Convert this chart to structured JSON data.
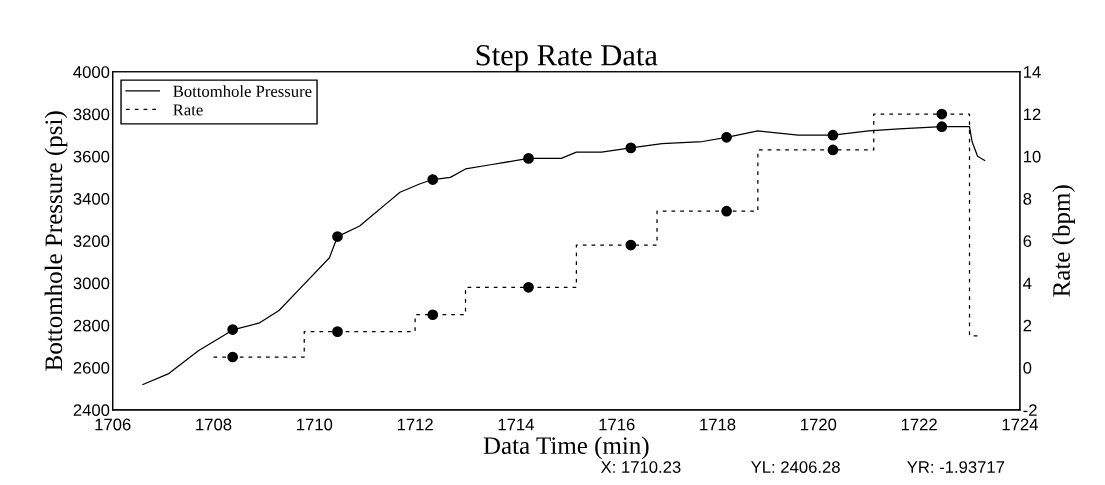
{
  "chart_data": {
    "type": "line",
    "title": "Step Rate Data",
    "xlabel": "Data Time (min)",
    "ylabel": "Bottomhole Pressure (psi)",
    "y2label": "Rate (bpm)",
    "xlim": [
      1706,
      1724
    ],
    "xticks": [
      1706,
      1708,
      1710,
      1712,
      1714,
      1716,
      1718,
      1720,
      1722,
      1724
    ],
    "ylim": [
      2400,
      4000
    ],
    "yticks": [
      2400,
      2600,
      2800,
      3000,
      3200,
      3400,
      3600,
      3800,
      4000
    ],
    "y2lim": [
      -2,
      14
    ],
    "y2ticks": [
      -2,
      0,
      2,
      4,
      6,
      8,
      10,
      12,
      14
    ],
    "grid": false,
    "legend": "top left",
    "series": [
      {
        "name": "Bottomhole Pressure",
        "color": "#000000",
        "line_style": "solid",
        "marker": "none",
        "x": [
          1706.6,
          1707.1,
          1707.7,
          1708.4,
          1708.9,
          1709.3,
          1709.7,
          1710.3,
          1710.46,
          1710.9,
          1711.1,
          1711.4,
          1711.7,
          1712.1,
          1712.35,
          1712.7,
          1713.0,
          1713.5,
          1714.25,
          1714.9,
          1715.2,
          1715.7,
          1716.28,
          1716.9,
          1717.7,
          1718.18,
          1718.8,
          1719.6,
          1720.29,
          1721.0,
          1721.6,
          1722.45,
          1723.0,
          1723.05,
          1723.16,
          1723.3
        ],
        "values": [
          2520,
          2570,
          2680,
          2780,
          2810,
          2870,
          2970,
          3120,
          3220,
          3270,
          3310,
          3370,
          3430,
          3470,
          3490,
          3500,
          3540,
          3560,
          3590,
          3590,
          3620,
          3620,
          3640,
          3660,
          3670,
          3690,
          3720,
          3700,
          3700,
          3720,
          3730,
          3740,
          3740,
          3670,
          3600,
          3580
        ]
      },
      {
        "name": "Rate",
        "type": "step",
        "axis": "y2",
        "color": "#000000",
        "line_style": "dashed",
        "marker": "none",
        "x": [
          1708.0,
          1709.8,
          1712.0,
          1713.0,
          1715.2,
          1716.8,
          1718.8,
          1721.1,
          1723.0,
          1723.2
        ],
        "values": [
          0.5,
          1.7,
          2.5,
          3.8,
          5.8,
          7.4,
          10.3,
          12.0,
          1.5,
          1.5
        ]
      },
      {
        "type": "scatter",
        "color": "#000000",
        "marker": "circle",
        "x": [
          1708.38,
          1710.46,
          1712.35,
          1714.25,
          1716.28,
          1718.18,
          1720.29,
          1722.45
        ],
        "values": [
          2780,
          3220,
          3490,
          3590,
          3640,
          3690,
          3700,
          3740
        ]
      },
      {
        "type": "scatter",
        "axis": "y2",
        "color": "#000000",
        "marker": "circle",
        "x": [
          1708.38,
          1710.46,
          1712.35,
          1714.25,
          1716.28,
          1718.18,
          1720.29,
          1722.45
        ],
        "values": [
          0.5,
          1.7,
          2.5,
          3.8,
          5.8,
          7.4,
          10.3,
          12.0
        ]
      }
    ],
    "annotations": [
      "X: 1710.23",
      "YL: 2406.28",
      "YR: -1.93717"
    ]
  }
}
